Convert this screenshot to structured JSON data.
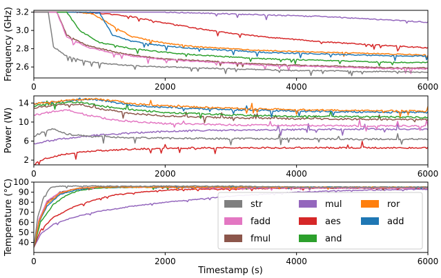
{
  "chart_data": {
    "type": "line",
    "xlabel": "Timestamp (s)",
    "xlim": [
      0,
      6000
    ],
    "xticks": [
      0,
      2000,
      4000,
      6000
    ],
    "colors": {
      "str": "#7f7f7f",
      "fadd": "#e377c2",
      "fmul": "#8c564b",
      "mul": "#9467bd",
      "aes": "#d62728",
      "and": "#2ca02c",
      "ror": "#ff7f0e",
      "add": "#1f77b4"
    },
    "legend": {
      "placement": "lower-right of bottom panel",
      "entries": [
        "str",
        "fadd",
        "fmul",
        "mul",
        "aes",
        "and",
        "ror",
        "add"
      ]
    },
    "panels": [
      {
        "name": "frequency",
        "ylabel": "Frequency (GHz)",
        "ylim": [
          2.48,
          3.22
        ],
        "yticks": [
          "2.6",
          "2.8",
          "3.0",
          "3.2"
        ],
        "ytick_values": [
          2.6,
          2.8,
          3.0,
          3.2
        ],
        "series": [
          {
            "name": "mul",
            "x": [
              0,
              2000,
              2500,
              3000,
              3500,
              4000,
              4500,
              5000,
              5500,
              6000
            ],
            "y": [
              3.2,
              3.2,
              3.19,
              3.18,
              3.17,
              3.16,
              3.15,
              3.13,
              3.11,
              3.09
            ]
          },
          {
            "name": "aes",
            "x": [
              0,
              600,
              1000,
              1500,
              2000,
              2500,
              3000,
              3500,
              4000,
              4500,
              5000,
              5500,
              6000
            ],
            "y": [
              3.2,
              3.2,
              3.19,
              3.15,
              3.08,
              3.02,
              2.97,
              2.93,
              2.9,
              2.87,
              2.85,
              2.83,
              2.81
            ]
          },
          {
            "name": "ror",
            "x": [
              0,
              700,
              900,
              1200,
              1500,
              2000,
              2500,
              3000,
              3500,
              4000,
              4500,
              5000,
              5500,
              6000
            ],
            "y": [
              3.2,
              3.2,
              3.18,
              3.05,
              2.93,
              2.86,
              2.82,
              2.8,
              2.78,
              2.77,
              2.76,
              2.75,
              2.74,
              2.73
            ]
          },
          {
            "name": "add",
            "x": [
              0,
              800,
              1000,
              1200,
              1500,
              2000,
              2500,
              3000,
              3500,
              4000,
              4500,
              5000,
              5500,
              6000
            ],
            "y": [
              3.2,
              3.2,
              3.19,
              2.95,
              2.88,
              2.83,
              2.8,
              2.78,
              2.76,
              2.75,
              2.74,
              2.73,
              2.72,
              2.72
            ]
          },
          {
            "name": "and",
            "x": [
              0,
              500,
              700,
              1000,
              1500,
              2000,
              2500,
              3000,
              3500,
              4000,
              4500,
              5000,
              5500,
              6000
            ],
            "y": [
              3.2,
              3.2,
              3.0,
              2.87,
              2.8,
              2.76,
              2.73,
              2.71,
              2.69,
              2.68,
              2.67,
              2.66,
              2.65,
              2.65
            ]
          },
          {
            "name": "fmul",
            "x": [
              0,
              350,
              500,
              800,
              1200,
              1600,
              2000,
              2500,
              3000,
              3500,
              4000,
              4500,
              5000,
              5500,
              6000
            ],
            "y": [
              3.2,
              3.2,
              2.95,
              2.84,
              2.77,
              2.72,
              2.69,
              2.67,
              2.65,
              2.63,
              2.62,
              2.61,
              2.6,
              2.59,
              2.59
            ]
          },
          {
            "name": "fadd",
            "x": [
              0,
              350,
              500,
              800,
              1200,
              1600,
              2000,
              2500,
              3000,
              3500,
              4000,
              4500,
              5000,
              5500,
              6000
            ],
            "y": [
              3.2,
              3.2,
              2.93,
              2.82,
              2.75,
              2.71,
              2.68,
              2.66,
              2.64,
              2.62,
              2.61,
              2.6,
              2.59,
              2.58,
              2.58
            ]
          },
          {
            "name": "str",
            "x": [
              0,
              220,
              300,
              500,
              800,
              1200,
              1600,
              2000,
              2500,
              3000,
              3500,
              4000,
              4500,
              5000,
              5500,
              6000
            ],
            "y": [
              3.2,
              3.2,
              2.82,
              2.72,
              2.66,
              2.63,
              2.61,
              2.6,
              2.59,
              2.58,
              2.57,
              2.56,
              2.56,
              2.55,
              2.55,
              2.54
            ]
          }
        ]
      },
      {
        "name": "power",
        "ylabel": "Power (W)",
        "ylim": [
          1,
          15.5
        ],
        "yticks": [
          "2",
          "6",
          "10",
          "14"
        ],
        "ytick_values": [
          2,
          6,
          10,
          14
        ],
        "series": [
          {
            "name": "aes",
            "x": [
              0,
              100,
              300,
              600,
              1000,
              1500,
              2000,
              3000,
              4000,
              5000,
              6000
            ],
            "y": [
              1.0,
              2.0,
              2.8,
              3.5,
              4.0,
              4.3,
              4.5,
              4.6,
              4.6,
              4.6,
              4.6
            ]
          },
          {
            "name": "mul",
            "x": [
              0,
              200,
              500,
              1000,
              1500,
              2000,
              2500,
              3000,
              4000,
              5000,
              6000
            ],
            "y": [
              5.5,
              6.0,
              6.6,
              7.3,
              7.7,
              8.0,
              8.2,
              8.3,
              8.4,
              8.5,
              8.5
            ]
          },
          {
            "name": "str",
            "x": [
              0,
              150,
              300,
              500,
              800,
              1200,
              2000,
              3000,
              4000,
              5000,
              6000
            ],
            "y": [
              7.0,
              8.0,
              8.5,
              7.5,
              7.0,
              6.8,
              6.6,
              6.5,
              6.5,
              6.4,
              6.4
            ]
          },
          {
            "name": "fadd",
            "x": [
              0,
              300,
              500,
              800,
              1200,
              1600,
              2000,
              3000,
              4000,
              5000,
              6000
            ],
            "y": [
              11.5,
              12.2,
              12.6,
              11.5,
              10.5,
              10.0,
              9.7,
              9.4,
              9.3,
              9.2,
              9.2
            ]
          },
          {
            "name": "fmul",
            "x": [
              0,
              400,
              700,
              1000,
              1500,
              2000,
              3000,
              4000,
              5000,
              6000
            ],
            "y": [
              13.0,
              13.6,
              13.8,
              12.8,
              11.8,
              11.3,
              10.9,
              10.7,
              10.6,
              10.5
            ]
          },
          {
            "name": "and",
            "x": [
              0,
              400,
              700,
              1000,
              1500,
              2000,
              3000,
              4000,
              5000,
              6000
            ],
            "y": [
              13.4,
              14.0,
              14.2,
              13.4,
              12.6,
              12.0,
              11.5,
              11.2,
              11.1,
              11.0
            ]
          },
          {
            "name": "add",
            "x": [
              0,
              500,
              900,
              1200,
              1500,
              2000,
              3000,
              4000,
              5000,
              6000
            ],
            "y": [
              13.8,
              14.5,
              14.8,
              14.2,
              13.5,
              13.1,
              12.6,
              12.3,
              12.1,
              12.0
            ]
          },
          {
            "name": "ror",
            "x": [
              0,
              500,
              900,
              1200,
              1500,
              2000,
              3000,
              4000,
              5000,
              6000
            ],
            "y": [
              13.9,
              14.6,
              14.9,
              14.5,
              13.9,
              13.4,
              12.9,
              12.6,
              12.4,
              12.3
            ]
          }
        ]
      },
      {
        "name": "temperature",
        "ylabel": "Temperature (°C)",
        "ylim": [
          30,
          100
        ],
        "yticks": [
          "40",
          "50",
          "60",
          "70",
          "80",
          "90",
          "100"
        ],
        "ytick_values": [
          40,
          50,
          60,
          70,
          80,
          90,
          100
        ],
        "series": [
          {
            "name": "mul",
            "x": [
              0,
              100,
              300,
              600,
              1000,
              1500,
              2000,
              2500,
              3000,
              3500,
              4000,
              4500,
              5000,
              6000
            ],
            "y": [
              35,
              48,
              58,
              65,
              71,
              76,
              80,
              83,
              86,
              88,
              90,
              91,
              92,
              93
            ]
          },
          {
            "name": "aes",
            "x": [
              0,
              100,
              300,
              600,
              900,
              1200,
              1600,
              2000,
              2500,
              3000,
              4000,
              5000,
              6000
            ],
            "y": [
              35,
              52,
              65,
              75,
              82,
              87,
              90,
              92,
              93,
              93,
              94,
              94,
              94
            ]
          },
          {
            "name": "and",
            "x": [
              0,
              100,
              300,
              500,
              700,
              1000,
              1500,
              2000,
              3000,
              4000,
              5000,
              6000
            ],
            "y": [
              35,
              60,
              78,
              87,
              92,
              94,
              95,
              95,
              95,
              95,
              95,
              95
            ]
          },
          {
            "name": "fmul",
            "x": [
              0,
              80,
              200,
              400,
              700,
              1000,
              1500,
              2000,
              3000,
              4000,
              5000,
              6000
            ],
            "y": [
              35,
              62,
              80,
              90,
              94,
              95,
              95,
              95,
              94,
              94,
              94,
              94
            ]
          },
          {
            "name": "fadd",
            "x": [
              0,
              80,
              200,
              400,
              700,
              1000,
              2000,
              3000,
              4000,
              5000,
              6000
            ],
            "y": [
              35,
              63,
              81,
              90,
              94,
              95,
              95,
              94,
              94,
              94,
              94
            ]
          },
          {
            "name": "add",
            "x": [
              0,
              80,
              200,
              400,
              700,
              1000,
              2000,
              3000,
              4000,
              5000,
              6000
            ],
            "y": [
              35,
              60,
              76,
              88,
              93,
              95,
              95,
              95,
              95,
              95,
              95
            ]
          },
          {
            "name": "ror",
            "x": [
              0,
              80,
              200,
              400,
              700,
              1000,
              2000,
              3000,
              4000,
              5000,
              6000
            ],
            "y": [
              35,
              61,
              78,
              89,
              94,
              95,
              95,
              95,
              95,
              95,
              95
            ]
          },
          {
            "name": "str",
            "x": [
              0,
              60,
              150,
              250,
              350,
              500,
              1000,
              2000,
              3000,
              4000,
              5000,
              6000
            ],
            "y": [
              35,
              65,
              85,
              94,
              96,
              96,
              96,
              96,
              96,
              95,
              95,
              95
            ]
          }
        ]
      }
    ]
  }
}
